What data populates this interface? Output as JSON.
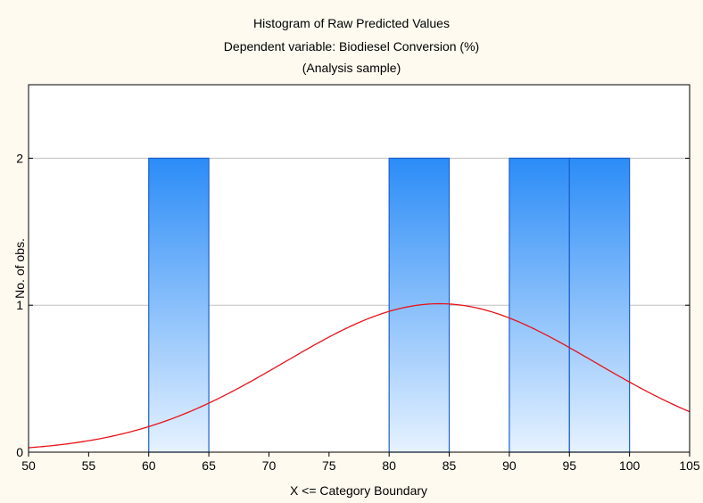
{
  "chart_data": {
    "type": "bar",
    "title": "Histogram of Raw Predicted Values",
    "subtitle": "Dependent variable: Biodiesel Conversion (%)",
    "subtitle2": "(Analysis sample)",
    "xlabel": "X <= Category Boundary",
    "ylabel": "No. of obs.",
    "xlim": [
      50,
      105
    ],
    "ylim": [
      0,
      2.5
    ],
    "x_ticks": [
      50,
      55,
      60,
      65,
      70,
      75,
      80,
      85,
      90,
      95,
      100,
      105
    ],
    "y_ticks": [
      0,
      1,
      2
    ],
    "bins": [
      {
        "from": 60,
        "to": 65,
        "count": 2
      },
      {
        "from": 80,
        "to": 85,
        "count": 2
      },
      {
        "from": 90,
        "to": 95,
        "count": 2
      },
      {
        "from": 95,
        "to": 100,
        "count": 2
      }
    ],
    "normal_curve": {
      "mean": 84.2,
      "sd": 12.9,
      "peak": 1.01
    },
    "grid": true,
    "colors": {
      "bar_top": "#2b8cf7",
      "bar_bottom": "#e6f2ff",
      "bar_edge": "#1b5fcf",
      "curve": "#e8121a",
      "grid": "#c0c0c0"
    }
  }
}
